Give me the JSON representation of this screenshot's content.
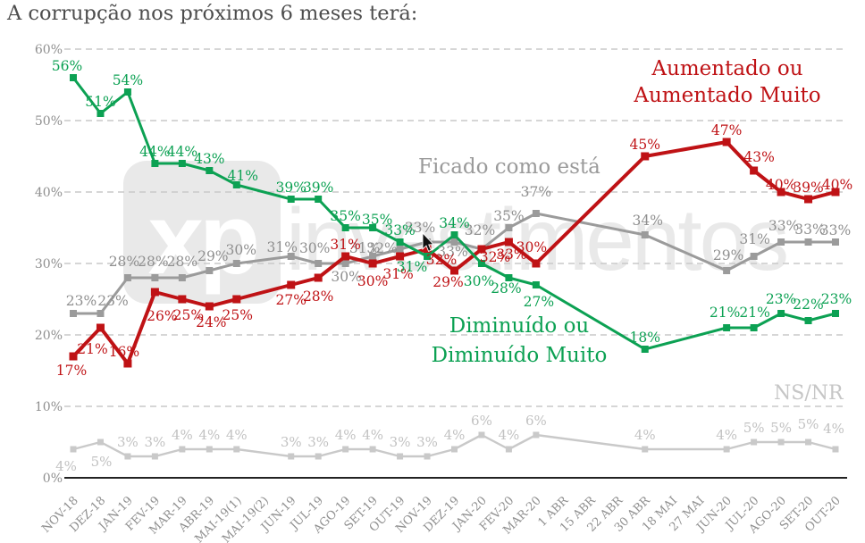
{
  "title": "A corrupção nos próximos 6 meses terá:",
  "watermark": {
    "logo": "xp",
    "text": "investimentos"
  },
  "annotations": {
    "aumentado_line1": "Aumentado ou",
    "aumentado_line2": "Aumentado Muito",
    "ficado": "Ficado como está",
    "diminuido_line1": "Diminuído ou",
    "diminuido_line2": "Diminuído Muito",
    "nsnr": "NS/NR"
  },
  "colors": {
    "aumentado": "#bf1215",
    "ficado": "#9b9b9b",
    "diminuido": "#0ca153",
    "nsnr": "#c9c9c9",
    "grid": "#c9c9c9",
    "axis_text": "#8f8f8f"
  },
  "chart_data": {
    "type": "line",
    "title": "A corrupção nos próximos 6 meses terá:",
    "grid": "dashed horizontal",
    "ylim": [
      0,
      60
    ],
    "yticks": [
      "0%",
      "10%",
      "20%",
      "30%",
      "40%",
      "50%",
      "60%"
    ],
    "categories": [
      "NOV-18",
      "DEZ-18",
      "JAN-19",
      "FEV-19",
      "MAR-19",
      "ABR-19",
      "MAI-19(1)",
      "MAI-19(2)",
      "JUN-19",
      "JUL-19",
      "AGO-19",
      "SET-19",
      "OUT-19",
      "NOV-19",
      "DEZ-19",
      "JAN-20",
      "FEV-20",
      "MAR-20",
      "1 ABR",
      "15 ABR",
      "22 ABR",
      "30 ABR",
      "18 MAI",
      "27 MAI",
      "JUN-20",
      "JUL-20",
      "AGO-20",
      "SET-20",
      "OUT-20"
    ],
    "series": [
      {
        "name": "Aumentado ou Aumentado Muito",
        "color": "#bf1215",
        "values": [
          17,
          21,
          16,
          26,
          25,
          24,
          25,
          null,
          27,
          28,
          31,
          30,
          31,
          32,
          29,
          32,
          33,
          30,
          null,
          null,
          null,
          45,
          null,
          null,
          47,
          43,
          40,
          39,
          40
        ]
      },
      {
        "name": "Ficado como está",
        "color": "#9b9b9b",
        "values": [
          23,
          23,
          28,
          28,
          28,
          29,
          30,
          null,
          31,
          30,
          30,
          31,
          32,
          33,
          33,
          32,
          35,
          37,
          null,
          null,
          null,
          34,
          null,
          null,
          29,
          31,
          33,
          33,
          33
        ]
      },
      {
        "name": "Diminuído ou Diminuído Muito",
        "color": "#0ca153",
        "values": [
          56,
          51,
          54,
          44,
          44,
          43,
          41,
          null,
          39,
          39,
          35,
          35,
          33,
          31,
          34,
          30,
          28,
          27,
          null,
          null,
          null,
          18,
          null,
          null,
          21,
          21,
          23,
          22,
          23
        ]
      },
      {
        "name": "NS/NR",
        "color": "#c9c9c9",
        "values": [
          4,
          5,
          3,
          3,
          4,
          4,
          4,
          null,
          3,
          3,
          4,
          4,
          3,
          3,
          4,
          6,
          4,
          6,
          null,
          null,
          null,
          4,
          null,
          null,
          4,
          5,
          5,
          5,
          4
        ]
      }
    ]
  }
}
